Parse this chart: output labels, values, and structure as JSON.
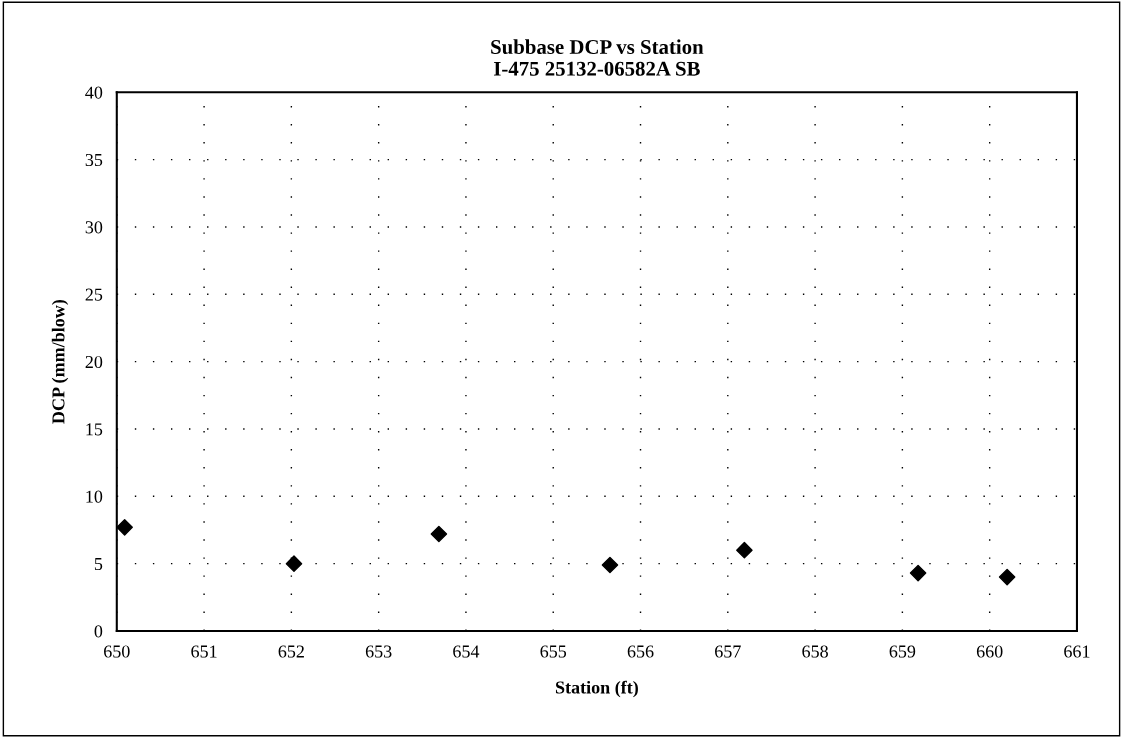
{
  "chart_data": {
    "type": "scatter",
    "title": "Subbase DCP vs Station\nI-475 25132-06582A SB",
    "xlabel": "Station (ft)",
    "ylabel": "DCP (mm/blow)",
    "x": [
      650.09,
      652.03,
      653.69,
      655.65,
      657.19,
      659.18,
      660.2
    ],
    "series": [
      {
        "color": "#000000",
        "values": [
          7.7,
          5.0,
          7.2,
          4.9,
          6.0,
          4.3,
          4.0
        ]
      }
    ],
    "xlim": [
      650,
      661
    ],
    "xticks": [
      650,
      651,
      652,
      653,
      654,
      655,
      656,
      657,
      658,
      659,
      660,
      661
    ],
    "ylim": [
      0,
      40
    ],
    "yticks": [
      0,
      5,
      10,
      15,
      20,
      25,
      30,
      35,
      40
    ],
    "grid": true,
    "marker": "diamond",
    "legend": false
  }
}
